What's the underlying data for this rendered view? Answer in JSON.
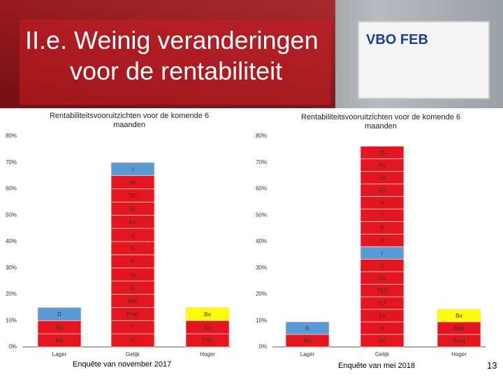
{
  "title": [
    "II.e. Weinig veranderingen",
    "voor de rentabiliteit"
  ],
  "logo": "VBO FEB",
  "page_number": "13",
  "chart_data": [
    {
      "type": "stacked-bar",
      "title": "Rentabiliteitsvooruitzichten voor de komende 6 maanden",
      "caption": "Enquête van november 2017",
      "ylim": [
        0,
        80
      ],
      "yticks": [
        {
          "value": 0,
          "label": "0%"
        },
        {
          "value": 10,
          "label": "10%"
        },
        {
          "value": 20,
          "label": "20%"
        },
        {
          "value": 30,
          "label": "30%"
        },
        {
          "value": 40,
          "label": "40%"
        },
        {
          "value": 50,
          "label": "50%"
        },
        {
          "value": 60,
          "label": "60%"
        },
        {
          "value": 70,
          "label": "70%"
        },
        {
          "value": 80,
          "label": "80%"
        }
      ],
      "categories": [
        "Lager",
        "Gelijk",
        "Hoger"
      ],
      "stacks": [
        [
          {
            "label": "Re",
            "value": 5,
            "color": "#e3161f"
          },
          {
            "label": "Ba",
            "value": 5,
            "color": "#e3161f"
          },
          {
            "label": "D",
            "value": 5,
            "color": "#5b9bd5"
          }
        ],
        [
          {
            "label": "H",
            "value": 5,
            "color": "#e3161f"
          },
          {
            "label": "T",
            "value": 5,
            "color": "#e3161f"
          },
          {
            "label": "Prod",
            "value": 5,
            "color": "#e3161f"
          },
          {
            "label": "Mat",
            "value": 5,
            "color": "#e3161f"
          },
          {
            "label": "G",
            "value": 5,
            "color": "#e3161f"
          },
          {
            "label": "Ce",
            "value": 5,
            "color": "#e3161f"
          },
          {
            "label": "P",
            "value": 5,
            "color": "#e3161f"
          },
          {
            "label": "S",
            "value": 5,
            "color": "#e3161f"
          },
          {
            "label": "V",
            "value": 5,
            "color": "#e3161f"
          },
          {
            "label": "En",
            "value": 5,
            "color": "#e3161f"
          },
          {
            "label": "GI",
            "value": 5,
            "color": "#e3161f"
          },
          {
            "label": "TIC",
            "value": 5,
            "color": "#e3161f"
          },
          {
            "label": "Ah",
            "value": 5,
            "color": "#e3161f"
          },
          {
            "label": "I",
            "value": 5,
            "color": "#5b9bd5"
          }
        ],
        [
          {
            "label": "TSS",
            "value": 5,
            "color": "#e3161f"
          },
          {
            "label": "Ex",
            "value": 5,
            "color": "#e3161f"
          },
          {
            "label": "Bo",
            "value": 5,
            "color": "#ffff00"
          }
        ]
      ]
    },
    {
      "type": "stacked-bar",
      "title": "Rentabiliteitsvooruitzichten voor de komende 6 maanden",
      "caption": "Enquête van mei 2018",
      "ylim": [
        0,
        80
      ],
      "yticks": [
        {
          "value": 0,
          "label": "0%"
        },
        {
          "value": 10,
          "label": "10%"
        },
        {
          "value": 20,
          "label": "20%"
        },
        {
          "value": 30,
          "label": "30%"
        },
        {
          "value": 40,
          "label": "40%"
        },
        {
          "value": 50,
          "label": "50%"
        },
        {
          "value": 60,
          "label": "60%"
        },
        {
          "value": 70,
          "label": "70%"
        },
        {
          "value": 80,
          "label": "80%"
        }
      ],
      "categories": [
        "Lager",
        "Gelijk",
        "Hoger"
      ],
      "stacks": [
        [
          {
            "label": "Ba",
            "value": 4.76,
            "color": "#e3161f"
          },
          {
            "label": "D",
            "value": 4.76,
            "color": "#5b9bd5"
          }
        ],
        [
          {
            "label": "Ah",
            "value": 4.76,
            "color": "#e3161f"
          },
          {
            "label": "V",
            "value": 4.76,
            "color": "#e3161f"
          },
          {
            "label": "Ex",
            "value": 4.76,
            "color": "#e3161f"
          },
          {
            "label": "ICT",
            "value": 4.76,
            "color": "#e3161f"
          },
          {
            "label": "TSS",
            "value": 4.76,
            "color": "#e3161f"
          },
          {
            "label": "Ce",
            "value": 4.76,
            "color": "#e3161f"
          },
          {
            "label": "G",
            "value": 4.76,
            "color": "#e3161f"
          },
          {
            "label": "I",
            "value": 4.76,
            "color": "#5b9bd5"
          },
          {
            "label": "S",
            "value": 4.76,
            "color": "#e3161f"
          },
          {
            "label": "P",
            "value": 4.76,
            "color": "#e3161f"
          },
          {
            "label": "T",
            "value": 4.76,
            "color": "#e3161f"
          },
          {
            "label": "H",
            "value": 4.76,
            "color": "#e3161f"
          },
          {
            "label": "En",
            "value": 4.76,
            "color": "#e3161f"
          },
          {
            "label": "GI",
            "value": 4.76,
            "color": "#e3161f"
          },
          {
            "label": "Pv",
            "value": 4.76,
            "color": "#e3161f"
          },
          {
            "label": "Ch",
            "value": 4.76,
            "color": "#e3161f"
          }
        ],
        [
          {
            "label": "Prod",
            "value": 4.76,
            "color": "#e3161f"
          },
          {
            "label": "Mat",
            "value": 4.76,
            "color": "#e3161f"
          },
          {
            "label": "Bo",
            "value": 4.76,
            "color": "#ffff00"
          }
        ]
      ]
    }
  ]
}
